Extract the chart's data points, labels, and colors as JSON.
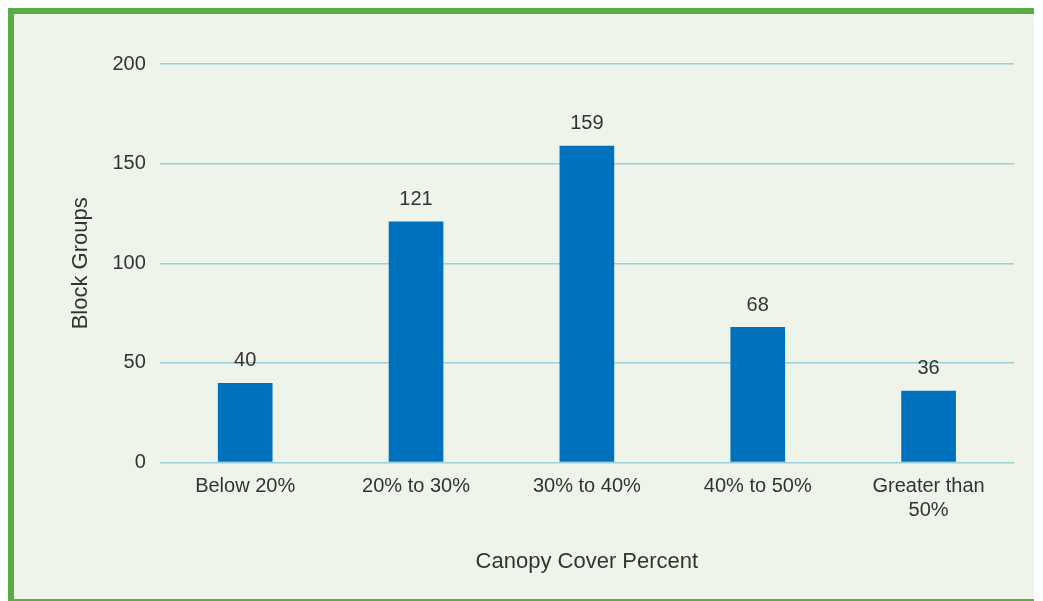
{
  "chart_data": {
    "type": "bar",
    "xlabel": "Canopy Cover Percent",
    "ylabel": "Block Groups",
    "categories": [
      "Below 20%",
      "20% to 30%",
      "30% to 40%",
      "40% to 50%",
      "Greater than 50%"
    ],
    "values": [
      40,
      121,
      159,
      68,
      36
    ],
    "color": "#0071bc",
    "ylim": [
      0,
      200
    ],
    "yticks": [
      0,
      50,
      100,
      150,
      200
    ],
    "grid": "y",
    "legend": false,
    "data_labels": true
  }
}
